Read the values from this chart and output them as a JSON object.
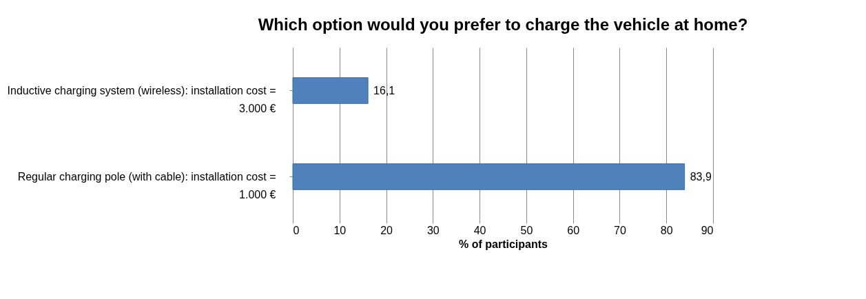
{
  "chart_data": {
    "type": "bar",
    "orientation": "horizontal",
    "title": "Which option would you prefer to charge the vehicle at home?",
    "xlabel": "% of participants",
    "categories": [
      "Inductive charging system (wireless): installation cost = 3.000 €",
      "Regular charging pole (with cable): installation cost = 1.000 €"
    ],
    "values": [
      16.1,
      83.9
    ],
    "value_labels": [
      "16,1",
      "83,9"
    ],
    "color": "#4f81bd",
    "xlim": [
      0,
      90
    ],
    "xticks": [
      0,
      10,
      20,
      30,
      40,
      50,
      60,
      70,
      80,
      90
    ],
    "grid": "x"
  }
}
